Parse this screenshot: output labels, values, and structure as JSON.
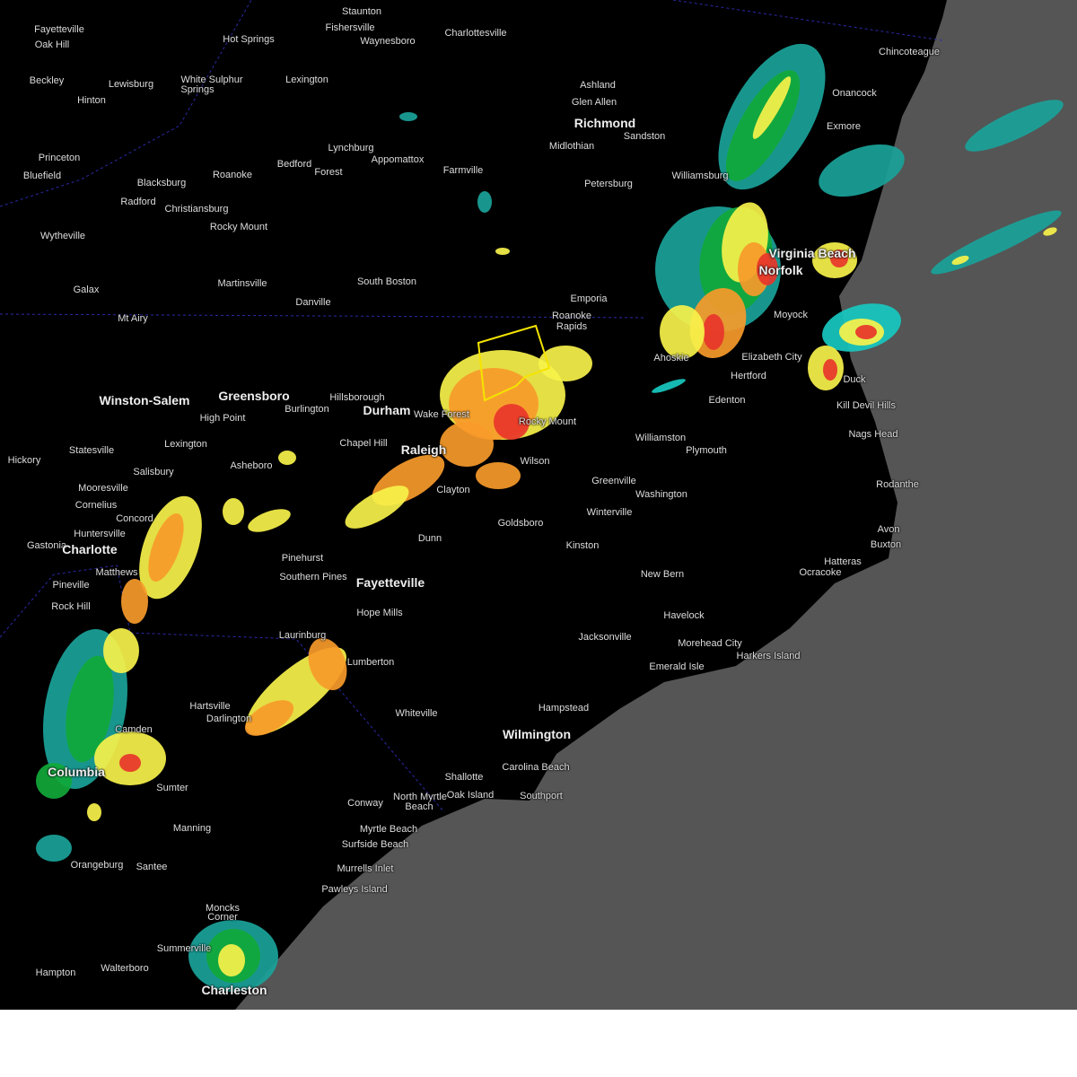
{
  "map": {
    "colors": {
      "land": "#000000",
      "ocean": "#555555",
      "border": "#2a2aa8",
      "road": "#2b2b2b",
      "warning_polygon": "#f5e400"
    },
    "radar_colors": {
      "light": "#1aa39a",
      "cyan": "#18c9c0",
      "green": "#11a83a",
      "yellow": "#f7f24a",
      "orange": "#f79a2a",
      "red": "#e8352a"
    },
    "cities": [
      "Fayetteville",
      "Oak Hill",
      "Staunton",
      "Fishersville",
      "Waynesboro",
      "Charlottesville",
      "Hot Springs",
      "Beckley",
      "Lewisburg",
      "White Sulphur",
      "Springs",
      "Lexington",
      "Hinton",
      "Ashland",
      "Glen Allen",
      "Richmond",
      "Sandston",
      "Midlothian",
      "Chincoteague",
      "Onancock",
      "Exmore",
      "Princeton",
      "Bluefield",
      "Lynchburg",
      "Appomattox",
      "Bedford",
      "Forest",
      "Farmville",
      "Blacksburg",
      "Roanoke",
      "Radford",
      "Christiansburg",
      "Petersburg",
      "Williamsburg",
      "Rocky Mount",
      "Wytheville",
      "Galax",
      "Martinsville",
      "South Boston",
      "Danville",
      "Emporia",
      "Roanoke",
      "Rapids",
      "Mt Airy",
      "Moyock",
      "Ahoskie",
      "Elizabeth City",
      "Hertford",
      "Duck",
      "Edenton",
      "Kill Devil Hills",
      "Winston-Salem",
      "Greensboro",
      "Hillsborough",
      "Burlington",
      "Durham",
      "High Point",
      "Wake Forest",
      "Rocky Mount",
      "Nags Head",
      "Williamston",
      "Plymouth",
      "Chapel Hill",
      "Lexington",
      "Statesville",
      "Raleigh",
      "Wilson",
      "Hickory",
      "Asheboro",
      "Salisbury",
      "Greenville",
      "Rodanthe",
      "Mooresville",
      "Clayton",
      "Washington",
      "Cornelius",
      "Concord",
      "Winterville",
      "Goldsboro",
      "Huntersville",
      "Avon",
      "Dunn",
      "Gastonia",
      "Charlotte",
      "Kinston",
      "Buxton",
      "Pinehurst",
      "Hatteras",
      "Matthews",
      "Southern Pines",
      "Ocracoke",
      "New Bern",
      "Fayetteville",
      "Pineville",
      "Rock Hill",
      "Hope Mills",
      "Havelock",
      "Laurinburg",
      "Jacksonville",
      "Morehead City",
      "Lumberton",
      "Emerald Isle",
      "Harkers Island",
      "Hartsville",
      "Darlington",
      "Whiteville",
      "Hampstead",
      "Camden",
      "Wilmington",
      "Columbia",
      "Carolina Beach",
      "Shallotte",
      "Sumter",
      "North Myrtle",
      "Beach",
      "Oak Island",
      "Southport",
      "Conway",
      "Manning",
      "Myrtle Beach",
      "Surfside Beach",
      "Orangeburg",
      "Santee",
      "Murrells Inlet",
      "Pawleys Island",
      "Moncks",
      "Corner",
      "Summerville",
      "Walterboro",
      "Hampton",
      "Charleston",
      "Norfolk",
      "Virginia Beach"
    ]
  }
}
